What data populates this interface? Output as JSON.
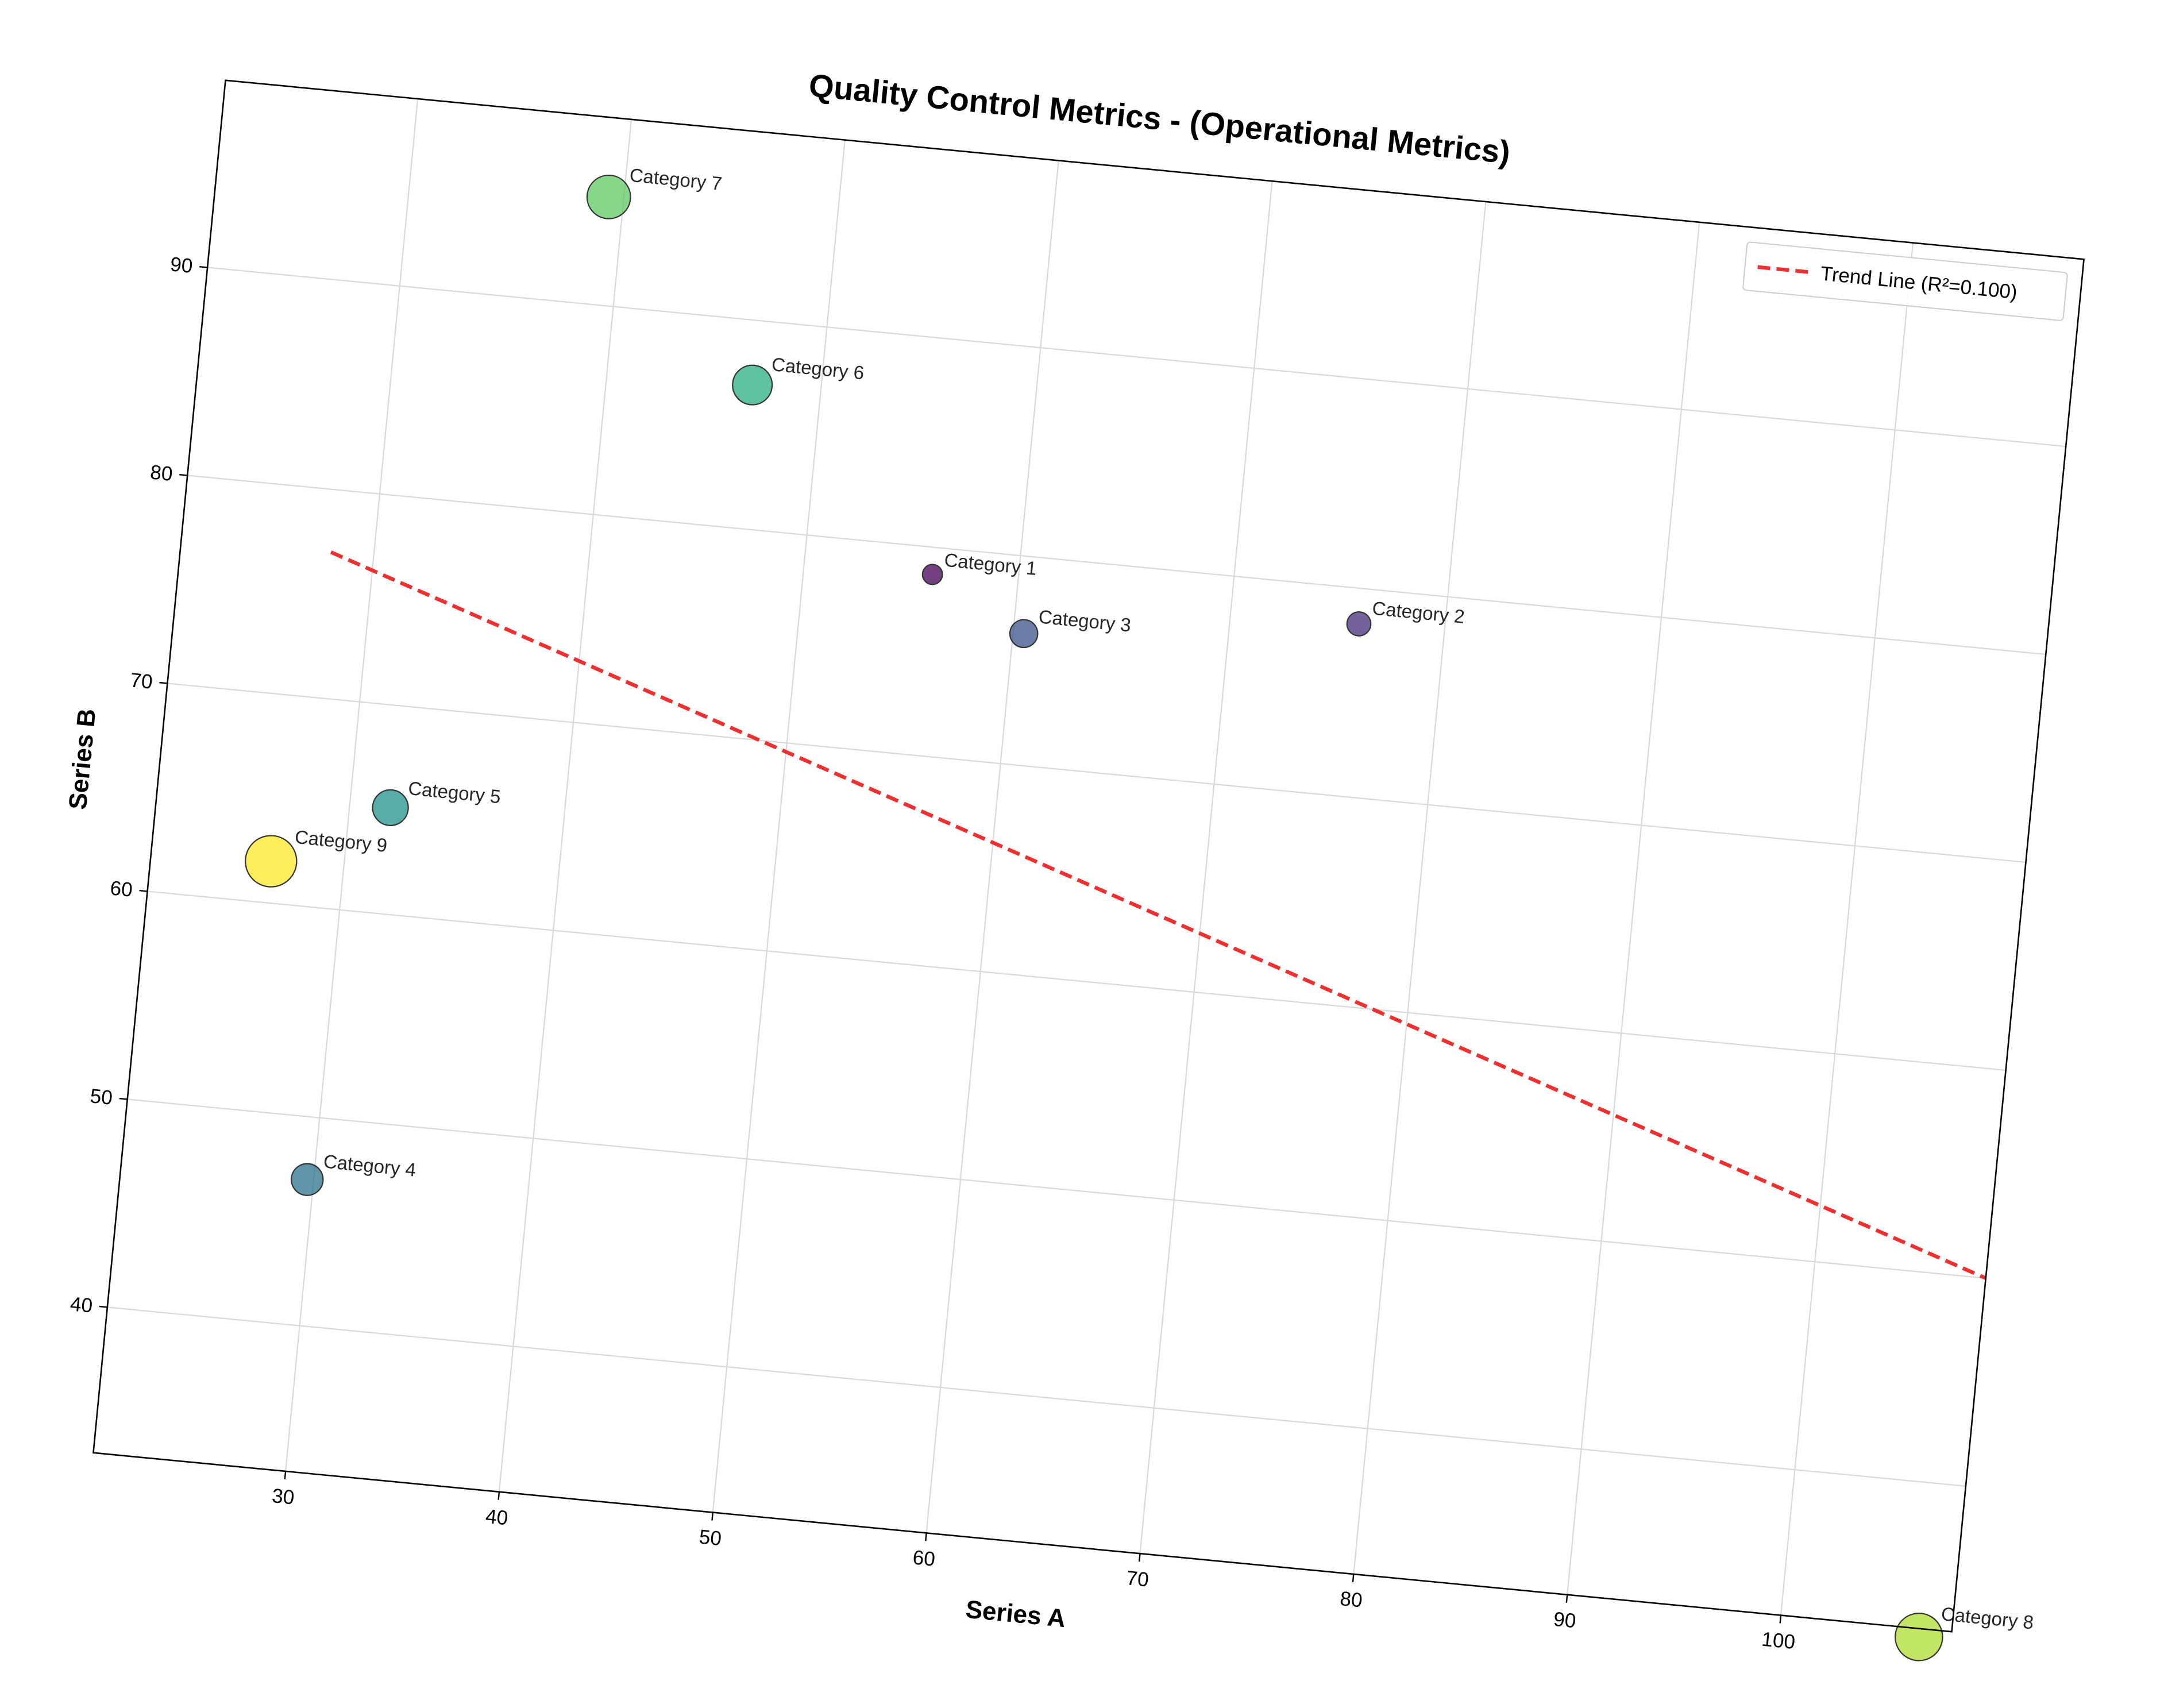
{
  "chart_data": {
    "type": "scatter",
    "title": "Quality Control Metrics - (Operational Metrics)",
    "xlabel": "Series A",
    "ylabel": "Series B",
    "xlim": [
      21,
      108
    ],
    "ylim": [
      33,
      99
    ],
    "x_ticks": [
      30,
      40,
      50,
      60,
      70,
      80,
      90,
      100
    ],
    "y_ticks": [
      40,
      50,
      60,
      70,
      80,
      90
    ],
    "grid": true,
    "legend_position": "top-right",
    "colormap": "viridis",
    "points": [
      {
        "label": "Category 1",
        "x": 56.0,
        "y": 78.7,
        "size": 1,
        "color": "#440154"
      },
      {
        "label": "Category 2",
        "x": 76.0,
        "y": 78.3,
        "size": 2,
        "color": "#472d7b"
      },
      {
        "label": "Category 3",
        "x": 60.5,
        "y": 76.3,
        "size": 3,
        "color": "#3b528b"
      },
      {
        "label": "Category 4",
        "x": 29.7,
        "y": 47.0,
        "size": 4,
        "color": "#2c728e"
      },
      {
        "label": "Category 5",
        "x": 31.9,
        "y": 65.1,
        "size": 5,
        "color": "#21918c"
      },
      {
        "label": "Category 6",
        "x": 46.8,
        "y": 86.9,
        "size": 6,
        "color": "#28ae80"
      },
      {
        "label": "Category 7",
        "x": 39.3,
        "y": 95.2,
        "size": 7,
        "color": "#5ec962"
      },
      {
        "label": "Category 8",
        "x": 106.5,
        "y": 32.6,
        "size": 8,
        "color": "#addc30"
      },
      {
        "label": "Category 9",
        "x": 26.6,
        "y": 62.0,
        "size": 9,
        "color": "#fde725"
      }
    ],
    "trend_line": {
      "name": "Trend Line (R²=0.100)",
      "x": [
        28.0,
        108.0
      ],
      "y": [
        77.0,
        50.0
      ],
      "color": "#f03030",
      "style": "dashed"
    }
  }
}
